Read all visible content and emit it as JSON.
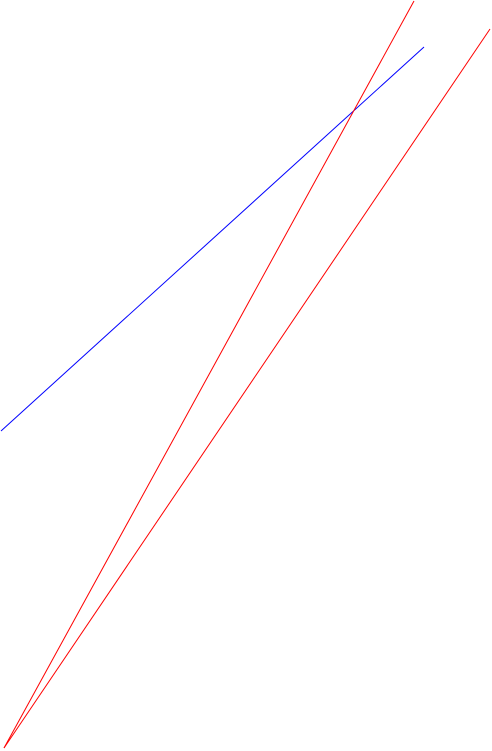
{
  "colors": {
    "background": "#ffffff",
    "blue_line": "#0000ff",
    "red_line": "#ff0000"
  },
  "lines": [
    {
      "name": "blue-line",
      "color": "#0000ff"
    },
    {
      "name": "red-line-steep",
      "color": "#ff0000"
    },
    {
      "name": "red-line-shallow",
      "color": "#ff0000"
    }
  ]
}
